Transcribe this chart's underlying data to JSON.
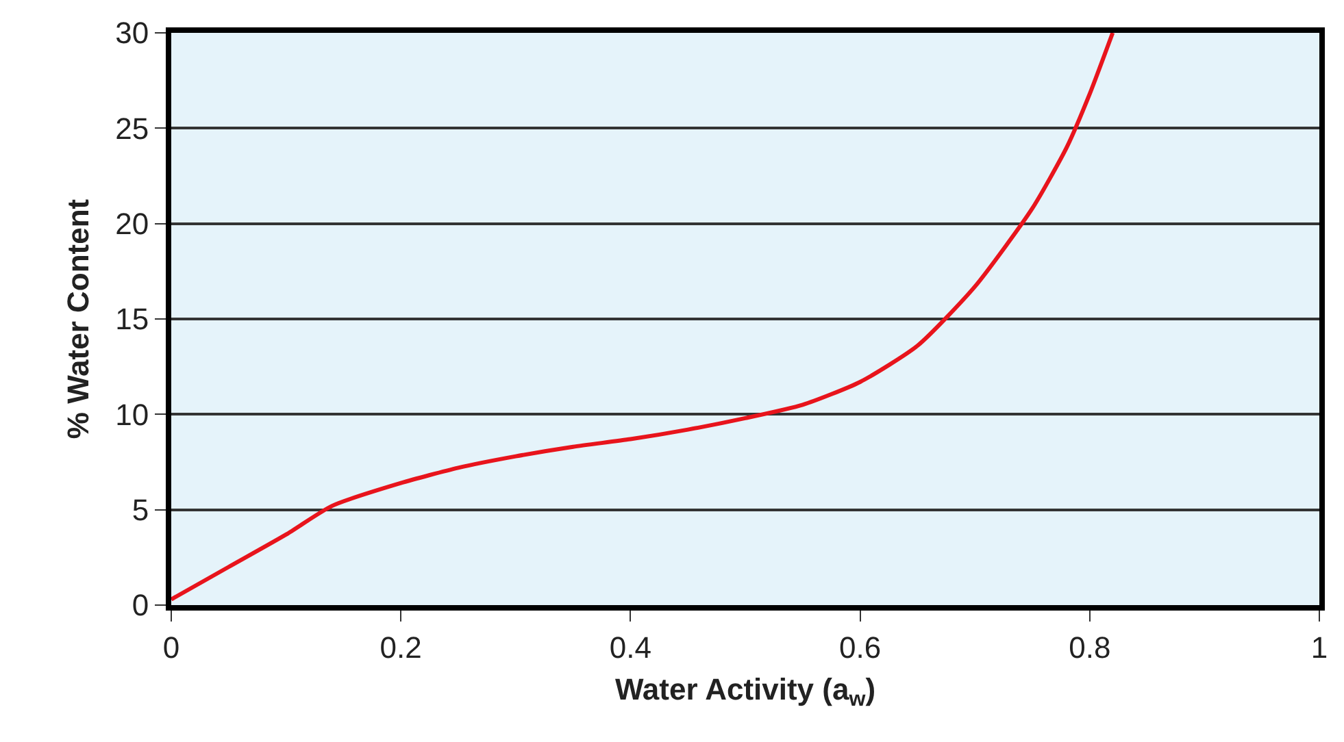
{
  "chart_data": {
    "type": "line",
    "xlabel": "Water Activity (a$_{w}$)",
    "ylabel": "% Water Content",
    "x": [
      0,
      0.05,
      0.1,
      0.14,
      0.2,
      0.25,
      0.3,
      0.35,
      0.4,
      0.45,
      0.5,
      0.55,
      0.6,
      0.65,
      0.7,
      0.75,
      0.78,
      0.8,
      0.82
    ],
    "series": [
      {
        "color": "#e8141c",
        "values": [
          0.3,
          2.0,
          3.7,
          5.2,
          6.4,
          7.2,
          7.8,
          8.3,
          8.7,
          9.2,
          9.8,
          10.5,
          11.7,
          13.6,
          16.7,
          20.8,
          24.0,
          26.8,
          30
        ]
      }
    ],
    "xlim": [
      0,
      1
    ],
    "xticks": [
      0,
      0.2,
      0.4,
      0.6,
      0.8,
      1
    ],
    "ylim": [
      0,
      30
    ],
    "yticks": [
      0,
      5,
      10,
      15,
      20,
      25,
      30
    ],
    "grid": "y",
    "marker": "none",
    "line_style": "solid"
  }
}
